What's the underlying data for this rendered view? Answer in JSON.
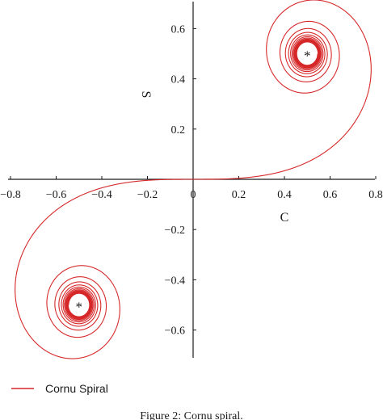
{
  "chart_data": {
    "type": "line",
    "xlabel": "C",
    "ylabel": "S",
    "xlim": [
      -0.8,
      0.8
    ],
    "ylim": [
      -0.72,
      0.72
    ],
    "x_ticks": [
      -0.8,
      -0.6,
      -0.4,
      -0.2,
      0,
      0.2,
      0.4,
      0.6,
      0.8
    ],
    "y_ticks": [
      -0.6,
      -0.4,
      -0.2,
      0.2,
      0.4,
      0.6
    ],
    "x_tick_labels": [
      "−0.8",
      "−0.6",
      "−0.4",
      "−0.2",
      "0",
      "0.2",
      "0.4",
      "0.6",
      "0.8"
    ],
    "y_tick_labels": [
      "−0.6",
      "−0.4",
      "−0.2",
      "0.2",
      "0.4",
      "0.6"
    ],
    "grid": false,
    "legend_position": "bottom-left",
    "series": [
      {
        "name": "Cornu Spiral",
        "color": "#d62728",
        "function": "C(t)=∫cos(πu²/2)du, S(t)=∫sin(πu²/2)du",
        "t_range": [
          -7,
          7
        ]
      }
    ],
    "annotations": [
      {
        "text": "*",
        "x": 0.5,
        "y": 0.5
      },
      {
        "text": "*",
        "x": -0.5,
        "y": -0.5
      }
    ]
  },
  "caption": "Figure 2: Cornu spiral."
}
